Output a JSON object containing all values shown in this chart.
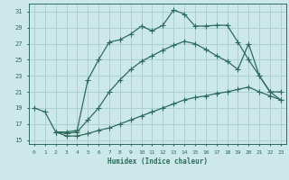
{
  "xlabel": "Humidex (Indice chaleur)",
  "bg_color": "#cce8e8",
  "grid_color": "#aad0d0",
  "line_color": "#2d6b5e",
  "xlim": [
    -0.5,
    23.5
  ],
  "ylim": [
    14.5,
    32
  ],
  "yticks": [
    15,
    17,
    19,
    21,
    23,
    25,
    27,
    29,
    31
  ],
  "xticks": [
    0,
    1,
    2,
    3,
    4,
    5,
    6,
    7,
    8,
    9,
    10,
    11,
    12,
    13,
    14,
    15,
    16,
    17,
    18,
    19,
    20,
    21,
    22,
    23
  ],
  "line1_x": [
    0,
    1,
    2,
    3,
    4,
    5,
    6,
    7,
    8,
    9,
    10,
    11,
    12,
    13,
    14,
    15,
    16,
    17,
    18,
    19,
    20,
    21,
    22,
    23
  ],
  "line1_y": [
    19.0,
    18.5,
    16.0,
    16.0,
    16.2,
    22.5,
    25.0,
    27.2,
    27.5,
    28.2,
    29.2,
    28.6,
    29.3,
    31.2,
    30.7,
    29.2,
    29.2,
    29.3,
    29.3,
    27.2,
    25.0,
    23.0,
    21.0,
    20.0
  ],
  "line2_x": [
    2,
    3,
    4,
    5,
    6,
    7,
    8,
    9,
    10,
    11,
    12,
    13,
    14,
    15,
    16,
    17,
    18,
    19,
    20,
    21,
    22,
    23
  ],
  "line2_y": [
    16.0,
    15.8,
    16.0,
    17.5,
    19.0,
    21.0,
    22.5,
    23.8,
    24.8,
    25.5,
    26.2,
    26.8,
    27.3,
    27.0,
    26.3,
    25.5,
    24.8,
    23.8,
    27.0,
    23.0,
    21.0,
    21.0
  ],
  "line3_x": [
    2,
    3,
    4,
    5,
    6,
    7,
    8,
    9,
    10,
    11,
    12,
    13,
    14,
    15,
    16,
    17,
    18,
    19,
    20,
    21,
    22,
    23
  ],
  "line3_y": [
    16.0,
    15.5,
    15.5,
    15.8,
    16.2,
    16.5,
    17.0,
    17.5,
    18.0,
    18.5,
    19.0,
    19.5,
    20.0,
    20.3,
    20.5,
    20.8,
    21.0,
    21.3,
    21.6,
    21.0,
    20.5,
    20.0
  ]
}
